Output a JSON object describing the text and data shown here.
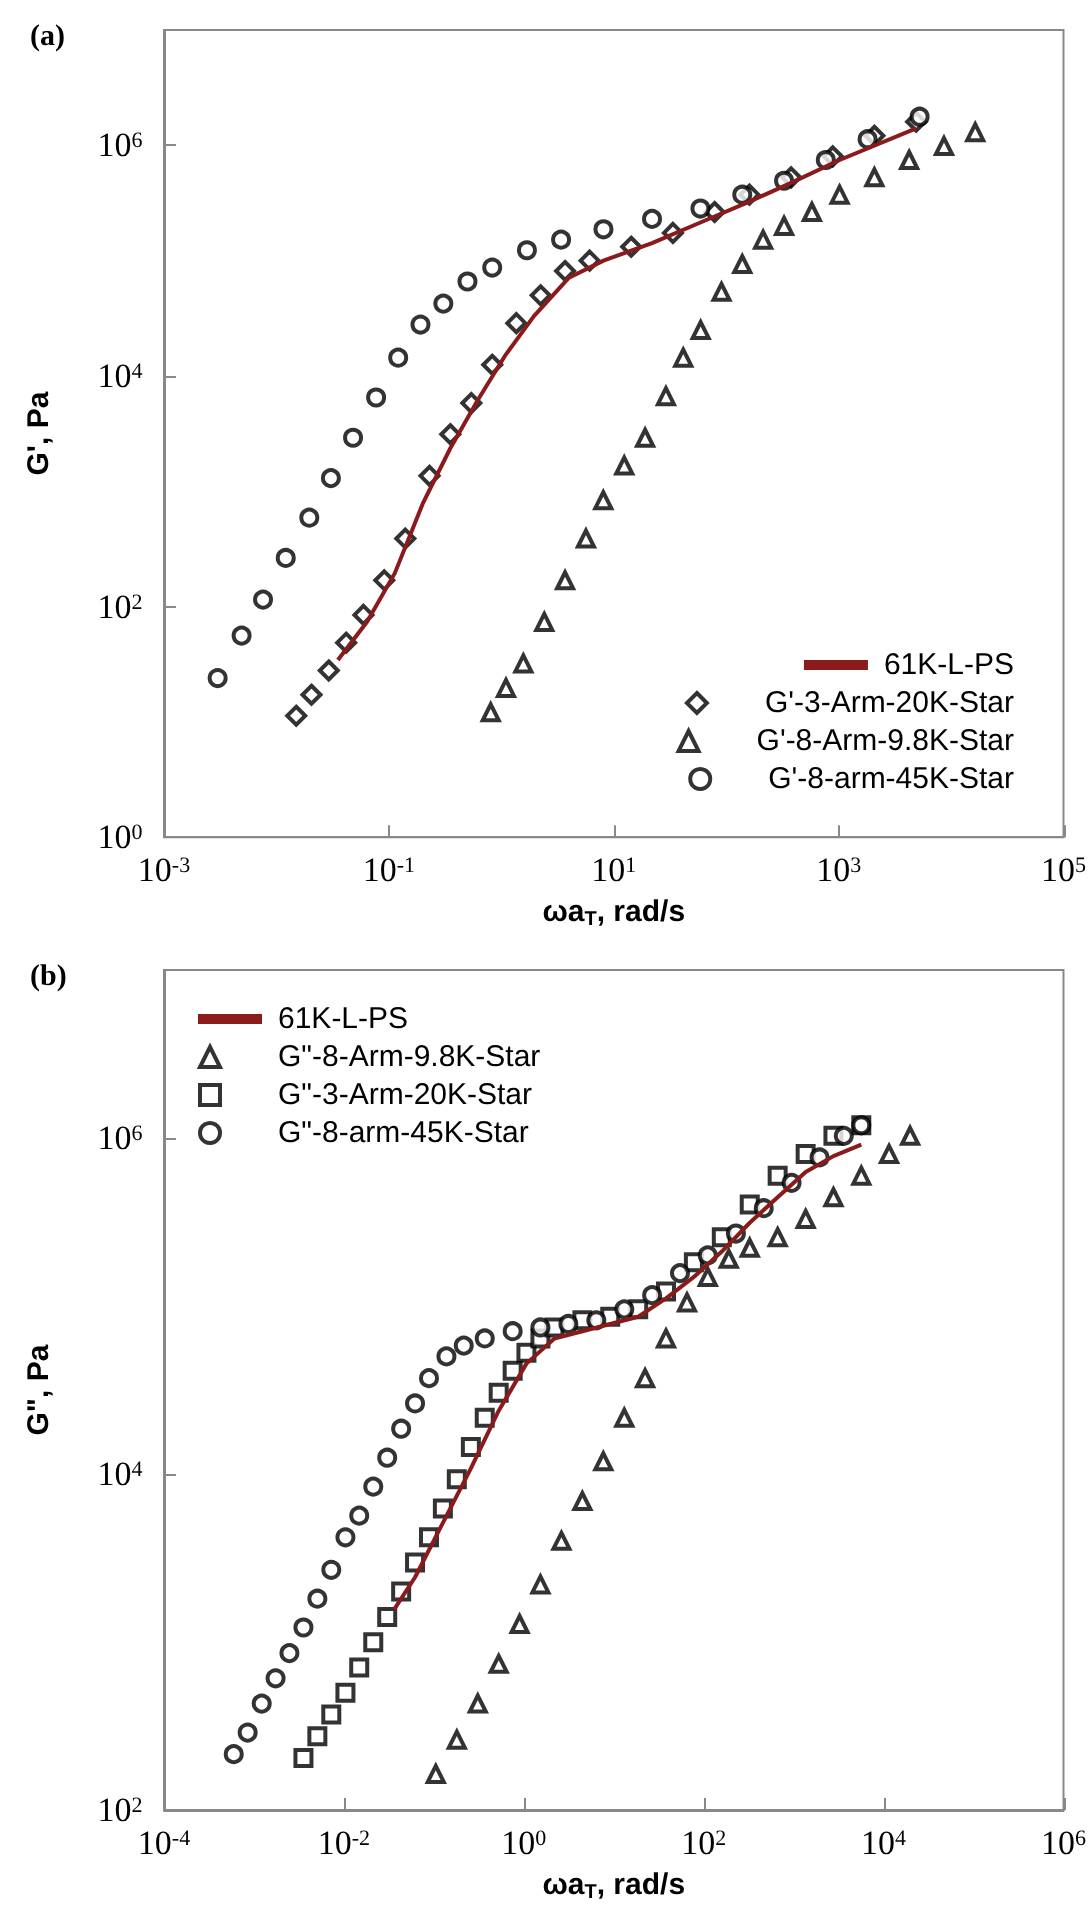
{
  "chart_data": [
    {
      "type": "scatter",
      "title": "(a)",
      "xlabel": "ωa$_{T}$, rad/s",
      "ylabel": "G', Pa",
      "log": "xy",
      "grid": false,
      "legend": "bottom right",
      "xlim": [
        0.001,
        100000
      ],
      "ylim": [
        1,
        10000000
      ],
      "xticks": [
        {
          "value": 0.001,
          "label": "10$^{-3}$"
        },
        {
          "value": 0.1,
          "label": "10$^{-1}$"
        },
        {
          "value": 10,
          "label": "10$^{1}$"
        },
        {
          "value": 1000,
          "label": "10$^{3}$"
        },
        {
          "value": 100000,
          "label": "10$^{5}$"
        }
      ],
      "yticks": [
        {
          "value": 1,
          "label": "10$^{0}$"
        },
        {
          "value": 100,
          "label": "10$^{2}$"
        },
        {
          "value": 10000,
          "label": "10$^{4}$"
        },
        {
          "value": 1000000,
          "label": "10$^{6}$"
        }
      ],
      "series": [
        {
          "name": "61K-L-PS",
          "type": "line",
          "marker": "none",
          "color": "#8b1a1a",
          "x": [
            0.0352,
            0.0638,
            0.113,
            0.2,
            0.352,
            0.622,
            1.1,
            1.95,
            3.96,
            8.1,
            21.9,
            59,
            161,
            378,
            1020,
            4890
          ],
          "values": [
            34.4,
            73.6,
            195,
            780,
            2360,
            6240,
            15400,
            33000,
            70600,
            100000,
            142000,
            214000,
            325000,
            473000,
            746000,
            1400000
          ]
        },
        {
          "name": "G'-3-Arm-20K-Star",
          "type": "scatter",
          "marker": "diamond",
          "color": "#000000",
          "x": [
            0.015,
            0.0205,
            0.0292,
            0.0417,
            0.0594,
            0.091,
            0.14,
            0.23,
            0.352,
            0.541,
            0.83,
            1.36,
            2.24,
            3.69,
            6.1,
            14.3,
            33.6,
            78.9,
            161,
            378,
            887,
            2080,
            4890
          ],
          "values": [
            11.3,
            17.2,
            27.9,
            48.6,
            84.7,
            169,
            389,
            1360,
            3120,
            5820,
            12500,
            28700,
            50000,
            81300,
            100000,
            132000,
            174000,
            264000,
            373000,
            528000,
            802000,
            1210000,
            1600000
          ]
        },
        {
          "name": "G'-8-Arm-9.8K-Star",
          "type": "scatter",
          "marker": "triangle",
          "color": "#000000",
          "x": [
            0.805,
            1.1,
            1.57,
            2.41,
            3.69,
            5.66,
            8.07,
            12.4,
            19,
            29.1,
            41.5,
            59.3,
            90.8,
            139,
            213,
            327,
            578,
            1020,
            2080,
            4240,
            8650,
            16400
          ],
          "values": [
            12.1,
            19.7,
            32.1,
            73.6,
            169,
            389,
            836,
            1670,
            2910,
            6680,
            14400,
            25000,
            53600,
            93300,
            152000,
            200000,
            264000,
            373000,
            528000,
            746000,
            986000,
            1300000
          ]
        },
        {
          "name": "G'-8-arm-45K-Star",
          "type": "scatter",
          "marker": "circle",
          "color": "#000000",
          "x": [
            0.003,
            0.0049,
            0.0076,
            0.0121,
            0.0196,
            0.0305,
            0.048,
            0.077,
            0.121,
            0.191,
            0.305,
            0.5,
            0.83,
            1.69,
            3.4,
            8.1,
            21.9,
            59,
            139,
            327,
            769,
            1810,
            5250
          ],
          "values": [
            24,
            56,
            115,
            264,
            590,
            1300,
            2910,
            6500,
            14400,
            27900,
            42400,
            65900,
            87100,
            123000,
            152000,
            187000,
            230000,
            283000,
            373000,
            493000,
            746000,
            1130000,
            1770000
          ]
        }
      ]
    },
    {
      "type": "scatter",
      "title": "(b)",
      "xlabel": "ωa$_{T}$, rad/s",
      "ylabel": "G\", Pa",
      "log": "xy",
      "grid": false,
      "legend": "top left",
      "xlim": [
        0.0001,
        1000000
      ],
      "ylim": [
        100,
        10000000
      ],
      "xticks": [
        {
          "value": 0.0001,
          "label": "10$^{-4}$"
        },
        {
          "value": 0.01,
          "label": "10$^{-2}$"
        },
        {
          "value": 1,
          "label": "10$^{0}$"
        },
        {
          "value": 100,
          "label": "10$^{2}$"
        },
        {
          "value": 10000,
          "label": "10$^{4}$"
        },
        {
          "value": 1000000,
          "label": "10$^{6}$"
        }
      ],
      "yticks": [
        {
          "value": 100,
          "label": "10$^{2}$"
        },
        {
          "value": 10000,
          "label": "10$^{4}$"
        },
        {
          "value": 1000000,
          "label": "10$^{6}$"
        }
      ],
      "series": [
        {
          "name": "61K-L-PS",
          "type": "line",
          "marker": "none",
          "color": "#8b1a1a",
          "x": [
            0.0361,
            0.0618,
            0.126,
            0.258,
            0.526,
            1.07,
            2.19,
            4.48,
            9.14,
            18.7,
            38.1,
            77.8,
            159,
            325,
            664,
            1360,
            2770,
            5650
          ],
          "values": [
            1560,
            2430,
            5120,
            10800,
            23800,
            45400,
            64100,
            70800,
            78200,
            86300,
            111000,
            149000,
            211000,
            313000,
            444000,
            628000,
            780000,
            914000
          ]
        },
        {
          "name": "G\"-8-Arm-9.8K-Star",
          "type": "scatter",
          "marker": "triangle",
          "color": "#000000",
          "x": [
            0.105,
            0.18,
            0.308,
            0.526,
            0.898,
            1.53,
            2.62,
            4.48,
            7.66,
            13.1,
            22.3,
            38.1,
            65.2,
            111,
            190,
            325,
            664,
            1360,
            2770,
            5650,
            11500,
            19700
          ],
          "values": [
            164,
            262,
            430,
            741,
            1280,
            2200,
            4000,
            6900,
            11900,
            21600,
            37200,
            64100,
            105000,
            149000,
            191000,
            222000,
            257000,
            330000,
            444000,
            597000,
            804000,
            1030000
          ]
        },
        {
          "name": "G\"-3-Arm-20K-Star",
          "type": "scatter",
          "marker": "square",
          "color": "#000000",
          "x": [
            0.00355,
            0.00507,
            0.00724,
            0.0104,
            0.0148,
            0.0212,
            0.0303,
            0.0433,
            0.0618,
            0.0883,
            0.126,
            0.18,
            0.258,
            0.368,
            0.526,
            0.752,
            1.07,
            1.53,
            2.19,
            4.48,
            9.14,
            18.7,
            38.1,
            77.8,
            159,
            325,
            664,
            1360,
            2770,
            5650
          ],
          "values": [
            204,
            275,
            370,
            499,
            705,
            998,
            1410,
            2000,
            2970,
            4200,
            6240,
            9290,
            14500,
            21600,
            30500,
            41100,
            52600,
            64100,
            74500,
            82200,
            86300,
            95500,
            122000,
            182000,
            257000,
            402000,
            597000,
            804000,
            1030000,
            1190000
          ]
        },
        {
          "name": "G\"-8-arm-45K-Star",
          "type": "scatter",
          "marker": "circle",
          "color": "#000000",
          "x": [
            0.000596,
            0.000851,
            0.00122,
            0.00174,
            0.00248,
            0.00355,
            0.00507,
            0.00724,
            0.0104,
            0.0148,
            0.0212,
            0.0303,
            0.0433,
            0.0618,
            0.0883,
            0.138,
            0.215,
            0.368,
            0.752,
            1.53,
            3.13,
            6.4,
            13.1,
            26.7,
            54.5,
            111,
            228,
            465,
            949,
            1940,
            3610,
            5650
          ],
          "values": [
            215,
            289,
            430,
            608,
            859,
            1220,
            1810,
            2690,
            4200,
            5650,
            8410,
            12500,
            18600,
            26300,
            37200,
            50100,
            58100,
            64100,
            70800,
            74500,
            78200,
            82200,
            95500,
            116000,
            157000,
            200000,
            270000,
            382000,
            541000,
            766000,
            1030000,
            1190000
          ]
        }
      ]
    }
  ]
}
